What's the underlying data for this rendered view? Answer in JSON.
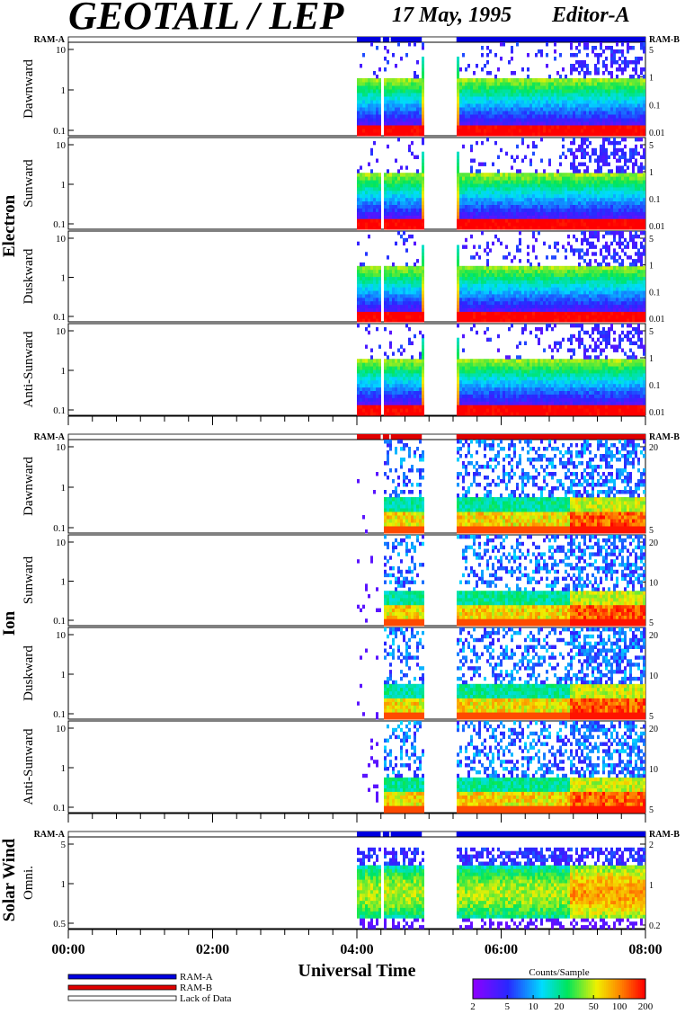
{
  "header": {
    "title": "GEOTAIL / LEP",
    "date": "17 May, 1995",
    "editor": "Editor-A"
  },
  "chart_data": {
    "type": "heatmap",
    "xlabel": "Universal Time",
    "x_ticks": [
      "00:00",
      "02:00",
      "04:00",
      "06:00",
      "08:00"
    ],
    "x_range_hours": [
      0,
      8
    ],
    "colorbar": {
      "title": "Counts/Sample",
      "ticks": [
        "2",
        "5",
        "10",
        "20",
        "50",
        "100",
        "200"
      ],
      "range": [
        2,
        200
      ],
      "scale": "log"
    },
    "legend": [
      {
        "label": "RAM-A",
        "color": "#0000e0"
      },
      {
        "label": "RAM-B",
        "color": "#e00000"
      },
      {
        "label": "Lack of Data",
        "color": "#ffffff"
      }
    ],
    "mode_labels": {
      "left": "RAM-A",
      "right": "RAM-B"
    },
    "data_intervals_hours": [
      [
        4.0,
        4.33
      ],
      [
        4.36,
        4.45
      ],
      [
        4.47,
        4.9
      ],
      [
        5.38,
        8.0
      ]
    ],
    "groups": [
      {
        "name": "Electron",
        "mode_bar_color": "#0000e0",
        "panels": [
          {
            "label": "Dawnward",
            "left_ticks": [
              "10",
              "1",
              "0.1"
            ],
            "right_ticks": [
              "5",
              "1",
              "0.1",
              "0.01"
            ]
          },
          {
            "label": "Sunward",
            "left_ticks": [
              "10",
              "1",
              "0.1"
            ],
            "right_ticks": [
              "5",
              "1",
              "0.1",
              "0.01"
            ]
          },
          {
            "label": "Duskward",
            "left_ticks": [
              "10",
              "1",
              "0.1"
            ],
            "right_ticks": [
              "5",
              "1",
              "0.1",
              "0.01"
            ]
          },
          {
            "label": "Anti-Sunward",
            "left_ticks": [
              "10",
              "1",
              "0.1"
            ],
            "right_ticks": [
              "5",
              "1",
              "0.1",
              "0.01"
            ]
          }
        ]
      },
      {
        "name": "Ion",
        "mode_bar_color": "#e00000",
        "panels": [
          {
            "label": "Dawnward",
            "left_ticks": [
              "10",
              "1",
              "0.1"
            ],
            "right_ticks": [
              "20",
              "5"
            ]
          },
          {
            "label": "Sunward",
            "left_ticks": [
              "10",
              "1",
              "0.1"
            ],
            "right_ticks": [
              "20",
              "10",
              "5"
            ]
          },
          {
            "label": "Duskward",
            "left_ticks": [
              "10",
              "1",
              "0.1"
            ],
            "right_ticks": [
              "20",
              "10",
              "5"
            ]
          },
          {
            "label": "Anti-Sunward",
            "left_ticks": [
              "10",
              "1",
              "0.1"
            ],
            "right_ticks": [
              "20",
              "10",
              "5"
            ]
          }
        ]
      },
      {
        "name": "Solar Wind",
        "mode_bar_color": "#0000e0",
        "panels": [
          {
            "label": "Omni.",
            "left_ticks": [
              "5",
              "1",
              "0.5"
            ],
            "right_ticks": [
              "2",
              "1",
              "0.2"
            ]
          }
        ]
      }
    ]
  }
}
